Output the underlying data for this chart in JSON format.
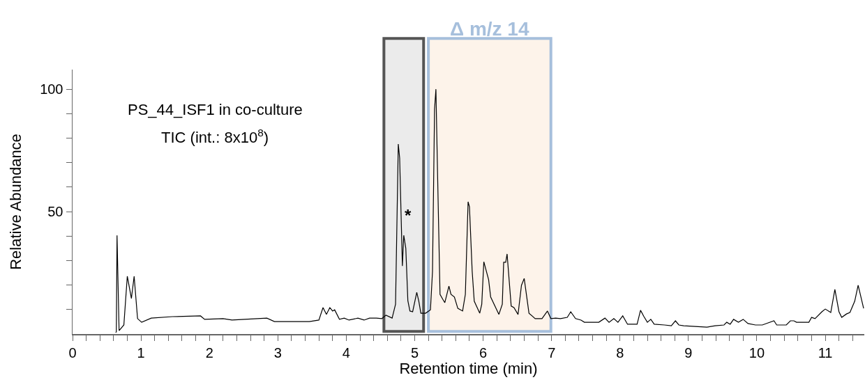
{
  "chart_data": {
    "type": "line",
    "xlabel": "Retention time (min)",
    "ylabel": "Relative Abundance",
    "annotations": [
      "PS_44_ISF1 in co-culture",
      "TIC (int.: 8x10$^{8}$)",
      {
        "text": "*",
        "x": 4.84,
        "y": 44
      }
    ],
    "series": [
      {
        "color": "#000000",
        "x": [
          0.63,
          0.64,
          0.65,
          0.68,
          0.75,
          0.8,
          0.86,
          0.9,
          0.95,
          1.01,
          1.15,
          1.46,
          1.87,
          1.93,
          2.2,
          2.33,
          2.84,
          2.95,
          3.46,
          3.6,
          3.66,
          3.71,
          3.76,
          3.8,
          3.83,
          3.9,
          3.97,
          4.04,
          4.17,
          4.26,
          4.34,
          4.44,
          4.52,
          4.58,
          4.67,
          4.72,
          4.76,
          4.78,
          4.82,
          4.84,
          4.87,
          4.9,
          4.93,
          4.97,
          5.03,
          5.06,
          5.09,
          5.16,
          5.23,
          5.26,
          5.29,
          5.31,
          5.33,
          5.37,
          5.41,
          5.44,
          5.5,
          5.53,
          5.58,
          5.63,
          5.7,
          5.74,
          5.78,
          5.8,
          5.84,
          5.87,
          5.95,
          5.98,
          6.01,
          6.08,
          6.11,
          6.23,
          6.28,
          6.3,
          6.33,
          6.35,
          6.41,
          6.45,
          6.51,
          6.56,
          6.6,
          6.67,
          6.76,
          6.86,
          6.94,
          6.99,
          7.06,
          7.13,
          7.23,
          7.28,
          7.35,
          7.43,
          7.48,
          7.69,
          7.78,
          7.84,
          7.91,
          7.97,
          8.04,
          8.11,
          8.25,
          8.3,
          8.35,
          8.4,
          8.45,
          8.5,
          8.65,
          8.75,
          8.81,
          8.86,
          8.93,
          9.1,
          9.27,
          9.39,
          9.52,
          9.56,
          9.61,
          9.66,
          9.73,
          9.8,
          9.87,
          9.98,
          10.08,
          10.25,
          10.29,
          10.43,
          10.49,
          10.54,
          10.58,
          10.76,
          10.8,
          10.85,
          10.95,
          11.0,
          11.08,
          11.14,
          11.2,
          11.24,
          11.31,
          11.36,
          11.43,
          11.48,
          11.56
        ],
        "values": [
          0.6,
          0.9,
          40.3,
          1.4,
          3.7,
          23.6,
          14.5,
          23.6,
          6.3,
          4.8,
          6.5,
          7.1,
          7.4,
          6.0,
          6.3,
          5.7,
          6.5,
          5.1,
          5.1,
          5.7,
          10.8,
          8.0,
          10.8,
          9.4,
          9.9,
          6.0,
          6.5,
          5.7,
          6.5,
          5.7,
          6.5,
          6.5,
          6.3,
          7.7,
          6.5,
          12.2,
          77.6,
          71.9,
          27.8,
          40.3,
          35.0,
          13.6,
          9.4,
          9.1,
          17.0,
          13.4,
          8.5,
          8.5,
          9.9,
          25.6,
          91.8,
          100,
          71.0,
          16.2,
          14.2,
          12.8,
          19.6,
          16.2,
          15.1,
          10.5,
          9.4,
          16.2,
          54.0,
          52.0,
          25.6,
          13.4,
          8.5,
          12.2,
          29.5,
          22.2,
          15.1,
          8.0,
          12.2,
          29.3,
          29.3,
          32.7,
          11.4,
          10.8,
          8.0,
          19.9,
          22.7,
          8.5,
          6.3,
          6.3,
          9.4,
          6.3,
          6.5,
          6.3,
          6.8,
          9.1,
          6.3,
          5.7,
          4.8,
          4.8,
          6.5,
          4.8,
          6.3,
          4.8,
          7.4,
          4.0,
          4.0,
          9.7,
          7.1,
          4.8,
          6.0,
          4.0,
          3.7,
          3.4,
          5.4,
          3.7,
          3.4,
          3.1,
          2.8,
          3.4,
          3.7,
          4.8,
          4.0,
          6.0,
          4.8,
          6.0,
          4.3,
          3.7,
          3.7,
          5.4,
          3.7,
          3.7,
          5.4,
          5.4,
          4.8,
          4.8,
          6.8,
          6.3,
          9.1,
          10.2,
          8.8,
          18.2,
          9.1,
          6.8,
          8.2,
          8.8,
          13.4,
          19.9,
          10.5
        ]
      }
    ],
    "bands": [
      {
        "axis": "x",
        "from": 4.55,
        "to": 5.13,
        "color": "#ebebeb"
      },
      {
        "axis": "x",
        "from": 5.2,
        "to": 6.99,
        "color": "#fdf3ea",
        "label": "Δ m/z 14"
      }
    ],
    "xlim": [
      0,
      11.57
    ],
    "xticks": [
      0,
      {
        "value": 0.2,
        "label": null
      },
      {
        "value": 0.4,
        "label": null
      },
      {
        "value": 0.6,
        "label": null
      },
      {
        "value": 0.8,
        "label": null
      },
      1,
      {
        "value": 1.2,
        "label": null
      },
      {
        "value": 1.4,
        "label": null
      },
      {
        "value": 1.6,
        "label": null
      },
      {
        "value": 1.8,
        "label": null
      },
      2,
      {
        "value": 2.2,
        "label": null
      },
      {
        "value": 2.4,
        "label": null
      },
      {
        "value": 2.6,
        "label": null
      },
      {
        "value": 2.8,
        "label": null
      },
      3,
      {
        "value": 3.2,
        "label": null
      },
      {
        "value": 3.4,
        "label": null
      },
      {
        "value": 3.6,
        "label": null
      },
      {
        "value": 3.8,
        "label": null
      },
      4,
      {
        "value": 4.2,
        "label": null
      },
      {
        "value": 4.4,
        "label": null
      },
      {
        "value": 4.6,
        "label": null
      },
      {
        "value": 4.8,
        "label": null
      },
      5,
      {
        "value": 5.2,
        "label": null
      },
      {
        "value": 5.4,
        "label": null
      },
      {
        "value": 5.6,
        "label": null
      },
      {
        "value": 5.8,
        "label": null
      },
      6,
      {
        "value": 6.2,
        "label": null
      },
      {
        "value": 6.4,
        "label": null
      },
      {
        "value": 6.6,
        "label": null
      },
      {
        "value": 6.8,
        "label": null
      },
      7,
      {
        "value": 7.2,
        "label": null
      },
      {
        "value": 7.4,
        "label": null
      },
      {
        "value": 7.6,
        "label": null
      },
      {
        "value": 7.8,
        "label": null
      },
      8,
      {
        "value": 8.2,
        "label": null
      },
      {
        "value": 8.4,
        "label": null
      },
      {
        "value": 8.6,
        "label": null
      },
      {
        "value": 8.8,
        "label": null
      },
      9,
      {
        "value": 9.2,
        "label": null
      },
      {
        "value": 9.4,
        "label": null
      },
      {
        "value": 9.6,
        "label": null
      },
      {
        "value": 9.8,
        "label": null
      },
      10,
      {
        "value": 10.2,
        "label": null
      },
      {
        "value": 10.4,
        "label": null
      },
      {
        "value": 10.6,
        "label": null
      },
      {
        "value": 10.8,
        "label": null
      },
      11,
      {
        "value": 11.2,
        "label": null
      },
      {
        "value": 11.4,
        "label": null
      }
    ],
    "ylim": [
      0,
      108
    ],
    "yticks": [
      {
        "value": 10,
        "label": null
      },
      {
        "value": 20,
        "label": null
      },
      {
        "value": 30,
        "label": null
      },
      {
        "value": 40,
        "label": null
      },
      50,
      {
        "value": 60,
        "label": null
      },
      {
        "value": 70,
        "label": null
      },
      {
        "value": 80,
        "label": null
      },
      {
        "value": 90,
        "label": null
      },
      100
    ],
    "grid": false,
    "marker": "none",
    "line_style": "solid"
  }
}
